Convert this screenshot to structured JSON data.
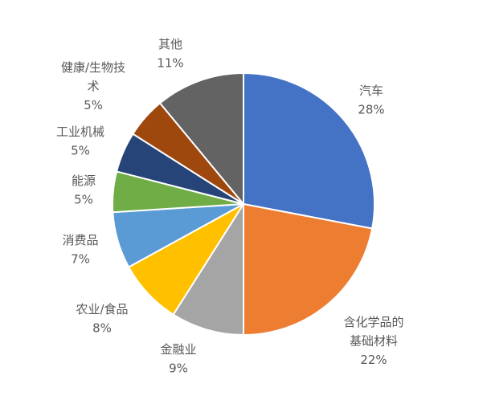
{
  "chart_data": {
    "type": "pie",
    "start_angle": "12 o'clock, clockwise",
    "slices": [
      {
        "name": "汽车",
        "value": 28,
        "label": "28%",
        "color": "#4472C4"
      },
      {
        "name": "含化学品的基础材料",
        "value": 22,
        "label": "22%",
        "color": "#ED7D31"
      },
      {
        "name": "金融业",
        "value": 9,
        "label": "9%",
        "color": "#A5A5A5"
      },
      {
        "name": "农业/食品",
        "value": 8,
        "label": "8%",
        "color": "#FFC000"
      },
      {
        "name": "消费品",
        "value": 7,
        "label": "7%",
        "color": "#5B9BD5"
      },
      {
        "name": "能源",
        "value": 5,
        "label": "5%",
        "color": "#70AD47"
      },
      {
        "name": "工业机械",
        "value": 5,
        "label": "5%",
        "color": "#264478"
      },
      {
        "name": "健康/生物技术",
        "value": 5,
        "label": "5%",
        "color": "#9E480E"
      },
      {
        "name": "其他",
        "value": 11,
        "label": "11%",
        "color": "#636363"
      }
    ],
    "legend": "none",
    "data_labels": "outside, category name and percentage"
  }
}
